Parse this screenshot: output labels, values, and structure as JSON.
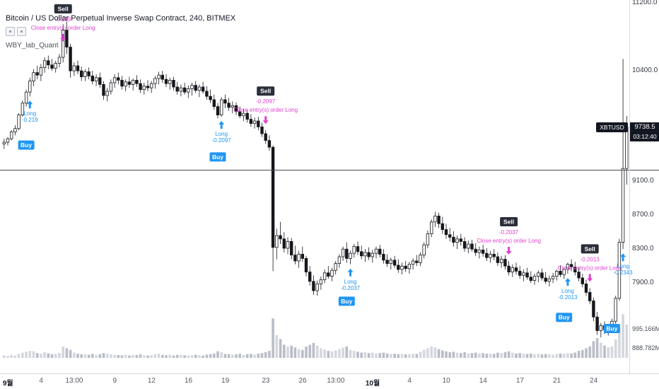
{
  "ui": {
    "legend": {
      "title": "Bitcoin / US Dollar Perpetual Inverse Swap Contract, 240, BITMEX",
      "strategy": "WBY_lab_Quant"
    },
    "price_axis": {
      "labels": [
        {
          "text": "11200.0",
          "price": 11200
        },
        {
          "text": "10400.0",
          "price": 10400
        },
        {
          "text": "9100.0",
          "price": 9100
        },
        {
          "text": "8700.0",
          "price": 8700
        },
        {
          "text": "8300.0",
          "price": 8300
        },
        {
          "text": "7900.0",
          "price": 7900
        }
      ],
      "last_price": {
        "symbol": "XBTUSD",
        "text": "9738.5",
        "price": 9738.5
      },
      "countdown": "03:12:40",
      "volume_labels": [
        "995.166M",
        "888.782M"
      ]
    },
    "time_axis": [
      {
        "text": "9월",
        "index": 1,
        "major": true
      },
      {
        "text": "4",
        "index": 10
      },
      {
        "text": "13:00",
        "index": 19
      },
      {
        "text": "9",
        "index": 30
      },
      {
        "text": "12",
        "index": 40
      },
      {
        "text": "16",
        "index": 50
      },
      {
        "text": "19",
        "index": 60
      },
      {
        "text": "23",
        "index": 71
      },
      {
        "text": "26",
        "index": 81
      },
      {
        "text": "13:00",
        "index": 90
      },
      {
        "text": "10월",
        "index": 100,
        "major": true
      },
      {
        "text": "4",
        "index": 110
      },
      {
        "text": "10",
        "index": 120
      },
      {
        "text": "14",
        "index": 130
      },
      {
        "text": "17",
        "index": 140
      },
      {
        "text": "21",
        "index": 150
      },
      {
        "text": "24",
        "index": 160
      }
    ],
    "horizontal_line_price": 9230,
    "colors": {
      "buy": "#2196f3",
      "sell_badge": "#2a2e39",
      "magenta": "#e23fd0",
      "candle": "#16171c",
      "candle_up_fill": "#ffffff",
      "vol_up": "#d4d7de",
      "vol_down": "#b9bdc7",
      "badge_bg": "#131722"
    },
    "marker_labels": {
      "buy": "Buy",
      "sell": "Sell",
      "long": "Long",
      "close_text": "Close entry(s) order Long"
    }
  },
  "chart_data": {
    "type": "candlestick",
    "title": "Bitcoin / US Dollar Perpetual Inverse Swap Contract, 240, BITMEX",
    "symbol": "XBTUSD",
    "exchange": "BITMEX",
    "interval": "240",
    "y_range": [
      6980,
      11235
    ],
    "last_price": 9738.5,
    "candles": [
      [
        9540,
        9600,
        9480,
        9560
      ],
      [
        9560,
        9620,
        9520,
        9600
      ],
      [
        9600,
        9700,
        9580,
        9680
      ],
      [
        9680,
        9760,
        9640,
        9720
      ],
      [
        9720,
        9900,
        9700,
        9880
      ],
      [
        9880,
        10050,
        9860,
        10020
      ],
      [
        10020,
        10180,
        9980,
        10150
      ],
      [
        10150,
        10320,
        10100,
        10280
      ],
      [
        10280,
        10420,
        10220,
        10380
      ],
      [
        10380,
        10460,
        10300,
        10350
      ],
      [
        10350,
        10480,
        10280,
        10440
      ],
      [
        10440,
        10560,
        10380,
        10520
      ],
      [
        10520,
        10580,
        10420,
        10470
      ],
      [
        10470,
        10540,
        10400,
        10430
      ],
      [
        10430,
        10520,
        10380,
        10490
      ],
      [
        10490,
        10600,
        10440,
        10560
      ],
      [
        10560,
        10950,
        10500,
        10880
      ],
      [
        10880,
        10980,
        10600,
        10680
      ],
      [
        10680,
        10720,
        10320,
        10400
      ],
      [
        10400,
        10500,
        10340,
        10460
      ],
      [
        10460,
        10520,
        10360,
        10400
      ],
      [
        10400,
        10450,
        10280,
        10330
      ],
      [
        10330,
        10420,
        10280,
        10390
      ],
      [
        10390,
        10440,
        10300,
        10340
      ],
      [
        10340,
        10400,
        10240,
        10280
      ],
      [
        10280,
        10360,
        10220,
        10320
      ],
      [
        10320,
        10380,
        10200,
        10240
      ],
      [
        10240,
        10280,
        10060,
        10110
      ],
      [
        10110,
        10200,
        10040,
        10160
      ],
      [
        10160,
        10300,
        10120,
        10260
      ],
      [
        10260,
        10360,
        10200,
        10320
      ],
      [
        10320,
        10380,
        10240,
        10290
      ],
      [
        10290,
        10340,
        10180,
        10220
      ],
      [
        10220,
        10300,
        10160,
        10270
      ],
      [
        10270,
        10330,
        10200,
        10240
      ],
      [
        10240,
        10310,
        10170,
        10290
      ],
      [
        10290,
        10350,
        10210,
        10250
      ],
      [
        10250,
        10300,
        10140,
        10180
      ],
      [
        10180,
        10260,
        10120,
        10220
      ],
      [
        10220,
        10290,
        10160,
        10200
      ],
      [
        10200,
        10280,
        10140,
        10250
      ],
      [
        10250,
        10340,
        10190,
        10310
      ],
      [
        10310,
        10390,
        10240,
        10350
      ],
      [
        10350,
        10400,
        10260,
        10300
      ],
      [
        10300,
        10360,
        10210,
        10250
      ],
      [
        10250,
        10320,
        10180,
        10290
      ],
      [
        10290,
        10330,
        10170,
        10210
      ],
      [
        10210,
        10270,
        10120,
        10160
      ],
      [
        10160,
        10240,
        10100,
        10200
      ],
      [
        10200,
        10260,
        10120,
        10150
      ],
      [
        10150,
        10230,
        10080,
        10190
      ],
      [
        10190,
        10260,
        10110,
        10230
      ],
      [
        10230,
        10280,
        10140,
        10170
      ],
      [
        10170,
        10240,
        10090,
        10210
      ],
      [
        10210,
        10270,
        10130,
        10160
      ],
      [
        10160,
        10220,
        10060,
        10100
      ],
      [
        10100,
        10180,
        10020,
        10060
      ],
      [
        10060,
        10120,
        9940,
        9980
      ],
      [
        9980,
        10020,
        9840,
        9880
      ],
      [
        9880,
        10090,
        9860,
        10060
      ],
      [
        10060,
        10120,
        9960,
        10020
      ],
      [
        10020,
        10080,
        9930,
        9970
      ],
      [
        9970,
        10040,
        9900,
        9990
      ],
      [
        9990,
        10030,
        9880,
        9920
      ],
      [
        9920,
        9980,
        9840,
        9870
      ],
      [
        9870,
        9950,
        9810,
        9900
      ],
      [
        9900,
        9940,
        9790,
        9830
      ],
      [
        9830,
        9890,
        9740,
        9780
      ],
      [
        9780,
        9850,
        9720,
        9810
      ],
      [
        9810,
        9860,
        9700,
        9740
      ],
      [
        9740,
        9790,
        9620,
        9660
      ],
      [
        9660,
        9700,
        9540,
        9580
      ],
      [
        9580,
        9640,
        9460,
        9500
      ],
      [
        9500,
        9520,
        8040,
        8320
      ],
      [
        8320,
        8540,
        8180,
        8460
      ],
      [
        8460,
        8620,
        8360,
        8420
      ],
      [
        8420,
        8500,
        8260,
        8310
      ],
      [
        8310,
        8440,
        8240,
        8390
      ],
      [
        8390,
        8430,
        8180,
        8230
      ],
      [
        8230,
        8340,
        8120,
        8160
      ],
      [
        8160,
        8280,
        8080,
        8240
      ],
      [
        8240,
        8330,
        8150,
        8190
      ],
      [
        8190,
        8220,
        7980,
        8030
      ],
      [
        8030,
        8100,
        7870,
        7920
      ],
      [
        7920,
        7990,
        7760,
        7810
      ],
      [
        7810,
        7930,
        7750,
        7890
      ],
      [
        7890,
        7980,
        7820,
        7940
      ],
      [
        7940,
        8060,
        7900,
        8020
      ],
      [
        8020,
        8100,
        7950,
        7980
      ],
      [
        7980,
        8080,
        7920,
        8050
      ],
      [
        8050,
        8160,
        8000,
        8130
      ],
      [
        8130,
        8240,
        8080,
        8210
      ],
      [
        8210,
        8330,
        8160,
        8300
      ],
      [
        8300,
        8380,
        8140,
        8190
      ],
      [
        8190,
        8280,
        8120,
        8250
      ],
      [
        8250,
        8360,
        8200,
        8330
      ],
      [
        8330,
        8390,
        8230,
        8270
      ],
      [
        8270,
        8340,
        8180,
        8220
      ],
      [
        8220,
        8300,
        8150,
        8260
      ],
      [
        8260,
        8320,
        8170,
        8210
      ],
      [
        8210,
        8290,
        8140,
        8250
      ],
      [
        8250,
        8330,
        8190,
        8300
      ],
      [
        8300,
        8350,
        8200,
        8240
      ],
      [
        8240,
        8300,
        8130,
        8170
      ],
      [
        8170,
        8240,
        8090,
        8130
      ],
      [
        8130,
        8200,
        8060,
        8170
      ],
      [
        8170,
        8220,
        8080,
        8110
      ],
      [
        8110,
        8180,
        8020,
        8060
      ],
      [
        8060,
        8140,
        8000,
        8100
      ],
      [
        8100,
        8160,
        8030,
        8070
      ],
      [
        8070,
        8150,
        8010,
        8120
      ],
      [
        8120,
        8190,
        8060,
        8160
      ],
      [
        8160,
        8230,
        8100,
        8140
      ],
      [
        8140,
        8260,
        8100,
        8230
      ],
      [
        8230,
        8380,
        8190,
        8350
      ],
      [
        8350,
        8520,
        8310,
        8480
      ],
      [
        8480,
        8650,
        8440,
        8620
      ],
      [
        8620,
        8740,
        8560,
        8690
      ],
      [
        8690,
        8730,
        8550,
        8600
      ],
      [
        8600,
        8680,
        8480,
        8530
      ],
      [
        8530,
        8600,
        8420,
        8470
      ],
      [
        8470,
        8550,
        8390,
        8440
      ],
      [
        8440,
        8510,
        8330,
        8380
      ],
      [
        8380,
        8460,
        8300,
        8420
      ],
      [
        8420,
        8480,
        8340,
        8390
      ],
      [
        8390,
        8440,
        8270,
        8310
      ],
      [
        8310,
        8400,
        8250,
        8360
      ],
      [
        8360,
        8410,
        8270,
        8300
      ],
      [
        8300,
        8370,
        8220,
        8260
      ],
      [
        8260,
        8330,
        8190,
        8290
      ],
      [
        8290,
        8350,
        8210,
        8250
      ],
      [
        8250,
        8310,
        8160,
        8200
      ],
      [
        8200,
        8280,
        8140,
        8240
      ],
      [
        8240,
        8300,
        8170,
        8210
      ],
      [
        8210,
        8260,
        8100,
        8140
      ],
      [
        8140,
        8220,
        8080,
        8180
      ],
      [
        8180,
        8230,
        8060,
        8100
      ],
      [
        8100,
        8160,
        7990,
        8030
      ],
      [
        8030,
        8120,
        7970,
        8080
      ],
      [
        8080,
        8140,
        8000,
        8040
      ],
      [
        8040,
        8100,
        7950,
        7990
      ],
      [
        7990,
        8060,
        7920,
        8020
      ],
      [
        8020,
        8080,
        7940,
        7970
      ],
      [
        7970,
        8040,
        7900,
        7930
      ],
      [
        7930,
        8010,
        7880,
        7980
      ],
      [
        7980,
        8050,
        7910,
        8020
      ],
      [
        8020,
        8070,
        7930,
        7960
      ],
      [
        7960,
        8030,
        7890,
        7920
      ],
      [
        7920,
        7990,
        7860,
        7950
      ],
      [
        7950,
        8020,
        7900,
        7980
      ],
      [
        7980,
        8060,
        7930,
        8040
      ],
      [
        8040,
        8110,
        7970,
        8000
      ],
      [
        8000,
        8080,
        7950,
        8060
      ],
      [
        8060,
        8140,
        8010,
        8120
      ],
      [
        8120,
        8180,
        8040,
        8090
      ],
      [
        8090,
        8150,
        7990,
        8030
      ],
      [
        8030,
        8080,
        7920,
        7960
      ],
      [
        7960,
        8010,
        7850,
        7890
      ],
      [
        7890,
        7940,
        7750,
        7790
      ],
      [
        7790,
        7840,
        7650,
        7690
      ],
      [
        7690,
        7730,
        7450,
        7500
      ],
      [
        7500,
        7560,
        7290,
        7340
      ],
      [
        7340,
        7430,
        7260,
        7400
      ],
      [
        7400,
        7450,
        7300,
        7350
      ],
      [
        7350,
        7420,
        7280,
        7390
      ],
      [
        7390,
        7480,
        7310,
        7450
      ],
      [
        7450,
        7750,
        7420,
        7720
      ],
      [
        7720,
        8420,
        7690,
        8380
      ],
      [
        8380,
        10540,
        8300,
        9250
      ],
      [
        9250,
        9870,
        9060,
        9738.5
      ]
    ],
    "volumes": [
      60,
      45,
      70,
      55,
      90,
      120,
      140,
      160,
      150,
      110,
      95,
      130,
      105,
      85,
      90,
      115,
      260,
      220,
      180,
      120,
      95,
      80,
      85,
      75,
      90,
      70,
      85,
      110,
      95,
      80,
      70,
      65,
      60,
      75,
      55,
      70,
      65,
      80,
      60,
      55,
      65,
      85,
      95,
      70,
      60,
      75,
      55,
      70,
      65,
      60,
      55,
      65,
      70,
      60,
      55,
      75,
      85,
      100,
      150,
      130,
      90,
      85,
      75,
      80,
      95,
      70,
      85,
      90,
      75,
      95,
      110,
      130,
      160,
      900,
      520,
      430,
      300,
      260,
      280,
      240,
      200,
      180,
      260,
      300,
      340,
      280,
      220,
      190,
      160,
      150,
      170,
      200,
      230,
      260,
      180,
      160,
      140,
      120,
      130,
      110,
      120,
      100,
      110,
      120,
      100,
      90,
      95,
      85,
      90,
      80,
      85,
      95,
      90,
      140,
      180,
      220,
      260,
      240,
      200,
      170,
      150,
      130,
      140,
      120,
      110,
      130,
      100,
      110,
      120,
      100,
      110,
      95,
      100,
      90,
      120,
      110,
      130,
      150,
      120,
      100,
      110,
      95,
      90,
      100,
      85,
      95,
      80,
      90,
      85,
      75,
      90,
      100,
      95,
      110,
      100,
      120,
      160,
      180,
      220,
      260,
      380,
      450,
      350,
      280,
      240,
      260,
      420,
      680,
      995,
      760
    ],
    "markers": [
      {
        "index": 6,
        "type": "buy",
        "arrow_index": 7,
        "qty": "-0.219"
      },
      {
        "index": 16,
        "type": "sell",
        "qty": "-0.219"
      },
      {
        "index": 58,
        "type": "buy",
        "arrow_index": 59,
        "qty": "-0.2097"
      },
      {
        "index": 71,
        "type": "sell",
        "qty": "-0.2097"
      },
      {
        "index": 93,
        "type": "buy",
        "arrow_index": 94,
        "qty": "-0.2037"
      },
      {
        "index": 137,
        "type": "sell",
        "qty": "-0.2037"
      },
      {
        "index": 152,
        "type": "buy",
        "arrow_index": 153,
        "qty": "-0.2013"
      },
      {
        "index": 159,
        "type": "sell",
        "qty": "-0.2013"
      },
      {
        "index": 165,
        "type": "buy",
        "arrow_index": 168,
        "qty": "-0.2343"
      }
    ]
  }
}
